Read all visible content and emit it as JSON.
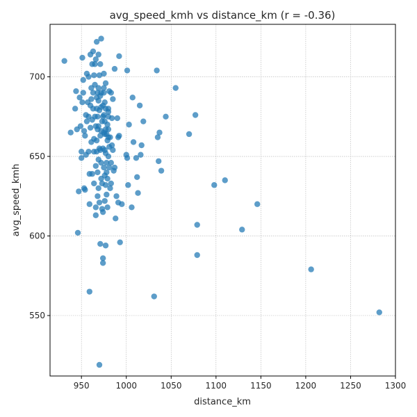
{
  "chart_data": {
    "type": "scatter",
    "title": "avg_speed_kmh vs distance_km (r = -0.36)",
    "xlabel": "distance_km",
    "ylabel": "avg_speed_kmh",
    "xlim": [
      915,
      1300
    ],
    "ylim": [
      512,
      733
    ],
    "xticks": [
      950,
      1000,
      1050,
      1100,
      1150,
      1200,
      1250,
      1300
    ],
    "yticks": [
      550,
      600,
      650,
      700
    ],
    "grid": true,
    "point_color": "#1f77b4",
    "points": [
      [
        931,
        710
      ],
      [
        938,
        665
      ],
      [
        943,
        680
      ],
      [
        944,
        691
      ],
      [
        945,
        667
      ],
      [
        946,
        602
      ],
      [
        947,
        628
      ],
      [
        948,
        687
      ],
      [
        949,
        669
      ],
      [
        950,
        653
      ],
      [
        950,
        649
      ],
      [
        951,
        684
      ],
      [
        951,
        712
      ],
      [
        952,
        698
      ],
      [
        952,
        690
      ],
      [
        953,
        666
      ],
      [
        953,
        630
      ],
      [
        954,
        663
      ],
      [
        954,
        629
      ],
      [
        955,
        651
      ],
      [
        955,
        676
      ],
      [
        956,
        702
      ],
      [
        956,
        672
      ],
      [
        957,
        684
      ],
      [
        958,
        700
      ],
      [
        958,
        653
      ],
      [
        958,
        675
      ],
      [
        959,
        620
      ],
      [
        959,
        565
      ],
      [
        959,
        639
      ],
      [
        960,
        714
      ],
      [
        960,
        668
      ],
      [
        960,
        682
      ],
      [
        961,
        659
      ],
      [
        961,
        686
      ],
      [
        961,
        693
      ],
      [
        962,
        639
      ],
      [
        962,
        708
      ],
      [
        962,
        673
      ],
      [
        963,
        716
      ],
      [
        963,
        690
      ],
      [
        963,
        680
      ],
      [
        964,
        633
      ],
      [
        964,
        653
      ],
      [
        964,
        661
      ],
      [
        964,
        701
      ],
      [
        965,
        708
      ],
      [
        965,
        695
      ],
      [
        965,
        675
      ],
      [
        966,
        669
      ],
      [
        966,
        711
      ],
      [
        966,
        644
      ],
      [
        966,
        618
      ],
      [
        966,
        613
      ],
      [
        967,
        722
      ],
      [
        967,
        687
      ],
      [
        967,
        680
      ],
      [
        967,
        660
      ],
      [
        967,
        653
      ],
      [
        968,
        690
      ],
      [
        968,
        675
      ],
      [
        968,
        667
      ],
      [
        968,
        640
      ],
      [
        968,
        625
      ],
      [
        969,
        714
      ],
      [
        969,
        693
      ],
      [
        969,
        685
      ],
      [
        969,
        669
      ],
      [
        969,
        648
      ],
      [
        969,
        630
      ],
      [
        970,
        701
      ],
      [
        970,
        679
      ],
      [
        970,
        655
      ],
      [
        970,
        621
      ],
      [
        970,
        519
      ],
      [
        971,
        595
      ],
      [
        971,
        708
      ],
      [
        971,
        688
      ],
      [
        971,
        663
      ],
      [
        971,
        654
      ],
      [
        972,
        724
      ],
      [
        972,
        690
      ],
      [
        972,
        681
      ],
      [
        972,
        666
      ],
      [
        972,
        646
      ],
      [
        972,
        636
      ],
      [
        973,
        672
      ],
      [
        973,
        633
      ],
      [
        973,
        617
      ],
      [
        974,
        682
      ],
      [
        974,
        675
      ],
      [
        974,
        655
      ],
      [
        974,
        615
      ],
      [
        974,
        586
      ],
      [
        974,
        583
      ],
      [
        975,
        702
      ],
      [
        975,
        693
      ],
      [
        975,
        690
      ],
      [
        975,
        676
      ],
      [
        975,
        665
      ],
      [
        975,
        643
      ],
      [
        976,
        684
      ],
      [
        976,
        672
      ],
      [
        976,
        664
      ],
      [
        976,
        654
      ],
      [
        976,
        638
      ],
      [
        976,
        622
      ],
      [
        977,
        594
      ],
      [
        977,
        696
      ],
      [
        977,
        680
      ],
      [
        977,
        667
      ],
      [
        977,
        652
      ],
      [
        977,
        632
      ],
      [
        978,
        626
      ],
      [
        978,
        664
      ],
      [
        978,
        646
      ],
      [
        978,
        640
      ],
      [
        979,
        670
      ],
      [
        979,
        660
      ],
      [
        979,
        636
      ],
      [
        979,
        618
      ],
      [
        980,
        678
      ],
      [
        980,
        680
      ],
      [
        980,
        675
      ],
      [
        980,
        667
      ],
      [
        980,
        662
      ],
      [
        980,
        650
      ],
      [
        981,
        691
      ],
      [
        981,
        656
      ],
      [
        981,
        643
      ],
      [
        982,
        630
      ],
      [
        982,
        662
      ],
      [
        983,
        690
      ],
      [
        983,
        646
      ],
      [
        983,
        633
      ],
      [
        984,
        674
      ],
      [
        984,
        657
      ],
      [
        985,
        686
      ],
      [
        985,
        654
      ],
      [
        986,
        641
      ],
      [
        987,
        705
      ],
      [
        987,
        643
      ],
      [
        988,
        611
      ],
      [
        989,
        625
      ],
      [
        990,
        674
      ],
      [
        991,
        621
      ],
      [
        991,
        662
      ],
      [
        992,
        713
      ],
      [
        992,
        663
      ],
      [
        993,
        596
      ],
      [
        995,
        620
      ],
      [
        1000,
        651
      ],
      [
        1001,
        649
      ],
      [
        1001,
        704
      ],
      [
        1002,
        632
      ],
      [
        1003,
        670
      ],
      [
        1006,
        618
      ],
      [
        1007,
        687
      ],
      [
        1008,
        659
      ],
      [
        1011,
        649
      ],
      [
        1012,
        637
      ],
      [
        1013,
        627
      ],
      [
        1015,
        682
      ],
      [
        1016,
        651
      ],
      [
        1017,
        657
      ],
      [
        1019,
        672
      ],
      [
        1031,
        562
      ],
      [
        1034,
        704
      ],
      [
        1035,
        662
      ],
      [
        1036,
        647
      ],
      [
        1037,
        665
      ],
      [
        1039,
        641
      ],
      [
        1044,
        675
      ],
      [
        1055,
        693
      ],
      [
        1070,
        664
      ],
      [
        1077,
        676
      ],
      [
        1079,
        607
      ],
      [
        1079,
        588
      ],
      [
        1098,
        632
      ],
      [
        1110,
        635
      ],
      [
        1129,
        604
      ],
      [
        1146,
        620
      ],
      [
        1206,
        579
      ],
      [
        1282,
        552
      ]
    ]
  }
}
